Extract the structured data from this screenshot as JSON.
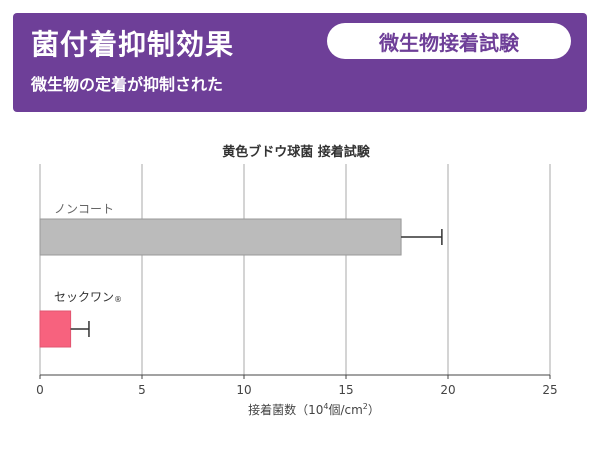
{
  "header": {
    "title": "菌付着抑制効果",
    "subtitle": "微生物の定着が抑制された",
    "badge": "微生物接着試験"
  },
  "chart_data": {
    "type": "bar",
    "orientation": "horizontal",
    "title": "黄色ブドウ球菌 接着試験",
    "xlabel_parts": {
      "prefix": "接着菌数（10",
      "exp1": "4",
      "mid": "個/cm",
      "exp2": "2",
      "suffix": "）"
    },
    "xlim": [
      0,
      25
    ],
    "xticks": [
      0,
      5,
      10,
      15,
      20,
      25
    ],
    "grid": true,
    "categories": [
      {
        "label": "ノンコート",
        "mark": ""
      },
      {
        "label": "セックワン",
        "mark": "®"
      }
    ],
    "values": [
      17.7,
      1.5
    ],
    "errors": [
      2.0,
      0.9
    ],
    "colors": [
      "#bbbbbb",
      "#f7627e"
    ]
  }
}
